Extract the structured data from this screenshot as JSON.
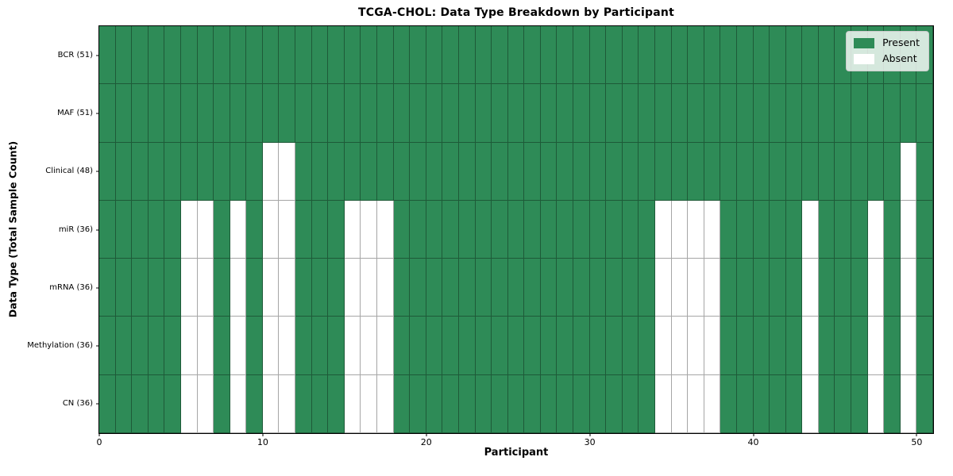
{
  "chart_data": {
    "type": "heatmap",
    "title": "TCGA-CHOL: Data Type Breakdown by Participant",
    "xlabel": "Participant",
    "ylabel": "Data Type (Total Sample Count)",
    "x_ticks": [
      0,
      10,
      20,
      30,
      40,
      50
    ],
    "x_range": [
      0,
      51
    ],
    "n_participants": 51,
    "grid": true,
    "legend_position": "upper right",
    "colors": {
      "present": "#2e8b57",
      "absent": "#ffffff",
      "gridline": "rgba(0,0,0,0.35)",
      "spine": "#000000",
      "legend_border": "#cccccc"
    },
    "legend_items": [
      {
        "label": "Present",
        "color": "#2e8b57"
      },
      {
        "label": "Absent",
        "color": "#ffffff"
      }
    ],
    "rows": [
      {
        "label": "BCR (51)",
        "total_samples": 51,
        "absent_participants": []
      },
      {
        "label": "MAF (51)",
        "total_samples": 51,
        "absent_participants": []
      },
      {
        "label": "Clinical (48)",
        "total_samples": 48,
        "absent_participants": [
          10,
          11,
          49
        ]
      },
      {
        "label": "miR (36)",
        "total_samples": 36,
        "absent_participants": [
          5,
          6,
          8,
          10,
          11,
          15,
          16,
          17,
          34,
          35,
          36,
          37,
          43,
          47,
          49
        ]
      },
      {
        "label": "mRNA (36)",
        "total_samples": 36,
        "absent_participants": [
          5,
          6,
          8,
          10,
          11,
          15,
          16,
          17,
          34,
          35,
          36,
          37,
          43,
          47,
          49
        ]
      },
      {
        "label": "Methylation (36)",
        "total_samples": 36,
        "absent_participants": [
          5,
          6,
          8,
          10,
          11,
          15,
          16,
          17,
          34,
          35,
          36,
          37,
          43,
          47,
          49
        ]
      },
      {
        "label": "CN (36)",
        "total_samples": 36,
        "absent_participants": [
          5,
          6,
          8,
          10,
          11,
          15,
          16,
          17,
          34,
          35,
          36,
          37,
          43,
          47,
          49
        ]
      }
    ]
  }
}
